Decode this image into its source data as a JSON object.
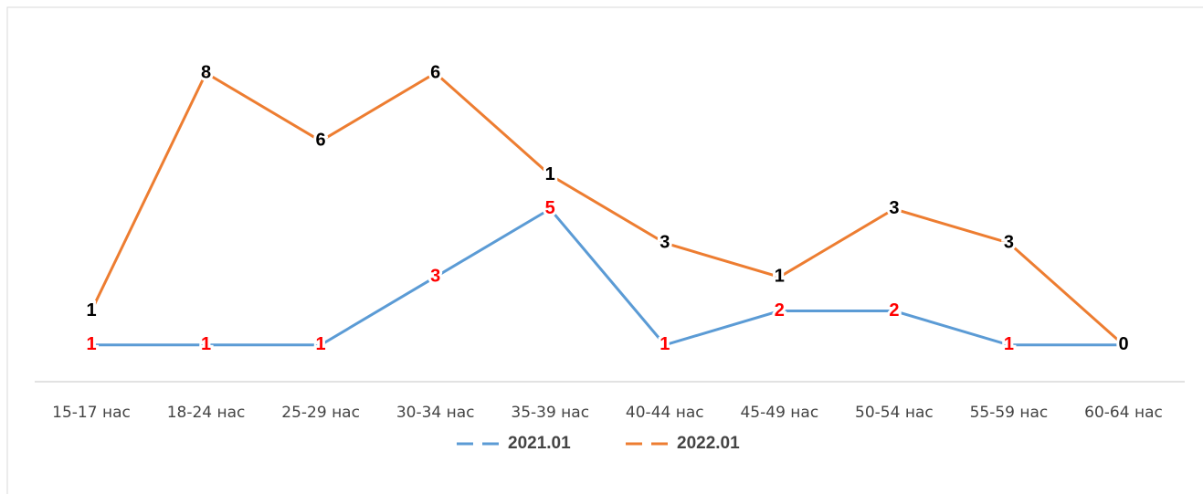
{
  "chart_data": {
    "type": "line",
    "stacked": true,
    "categories": [
      "15-17 нас",
      "18-24 нас",
      "25-29 нас",
      "30-34 нас",
      "35-39 нас",
      "40-44 нас",
      "45-49 нас",
      "50-54 нас",
      "55-59 нас",
      "60-64 нас"
    ],
    "series": [
      {
        "name": "2021.01",
        "color": "#5b9bd5",
        "label_color": "#ff0000",
        "values": [
          1,
          1,
          1,
          3,
          5,
          1,
          2,
          2,
          1,
          1
        ]
      },
      {
        "name": "2022.01",
        "color": "#ed7d31",
        "label_color": "#000000",
        "values": [
          1,
          8,
          6,
          6,
          1,
          3,
          1,
          3,
          3,
          0
        ]
      }
    ],
    "legend": "bottom"
  }
}
